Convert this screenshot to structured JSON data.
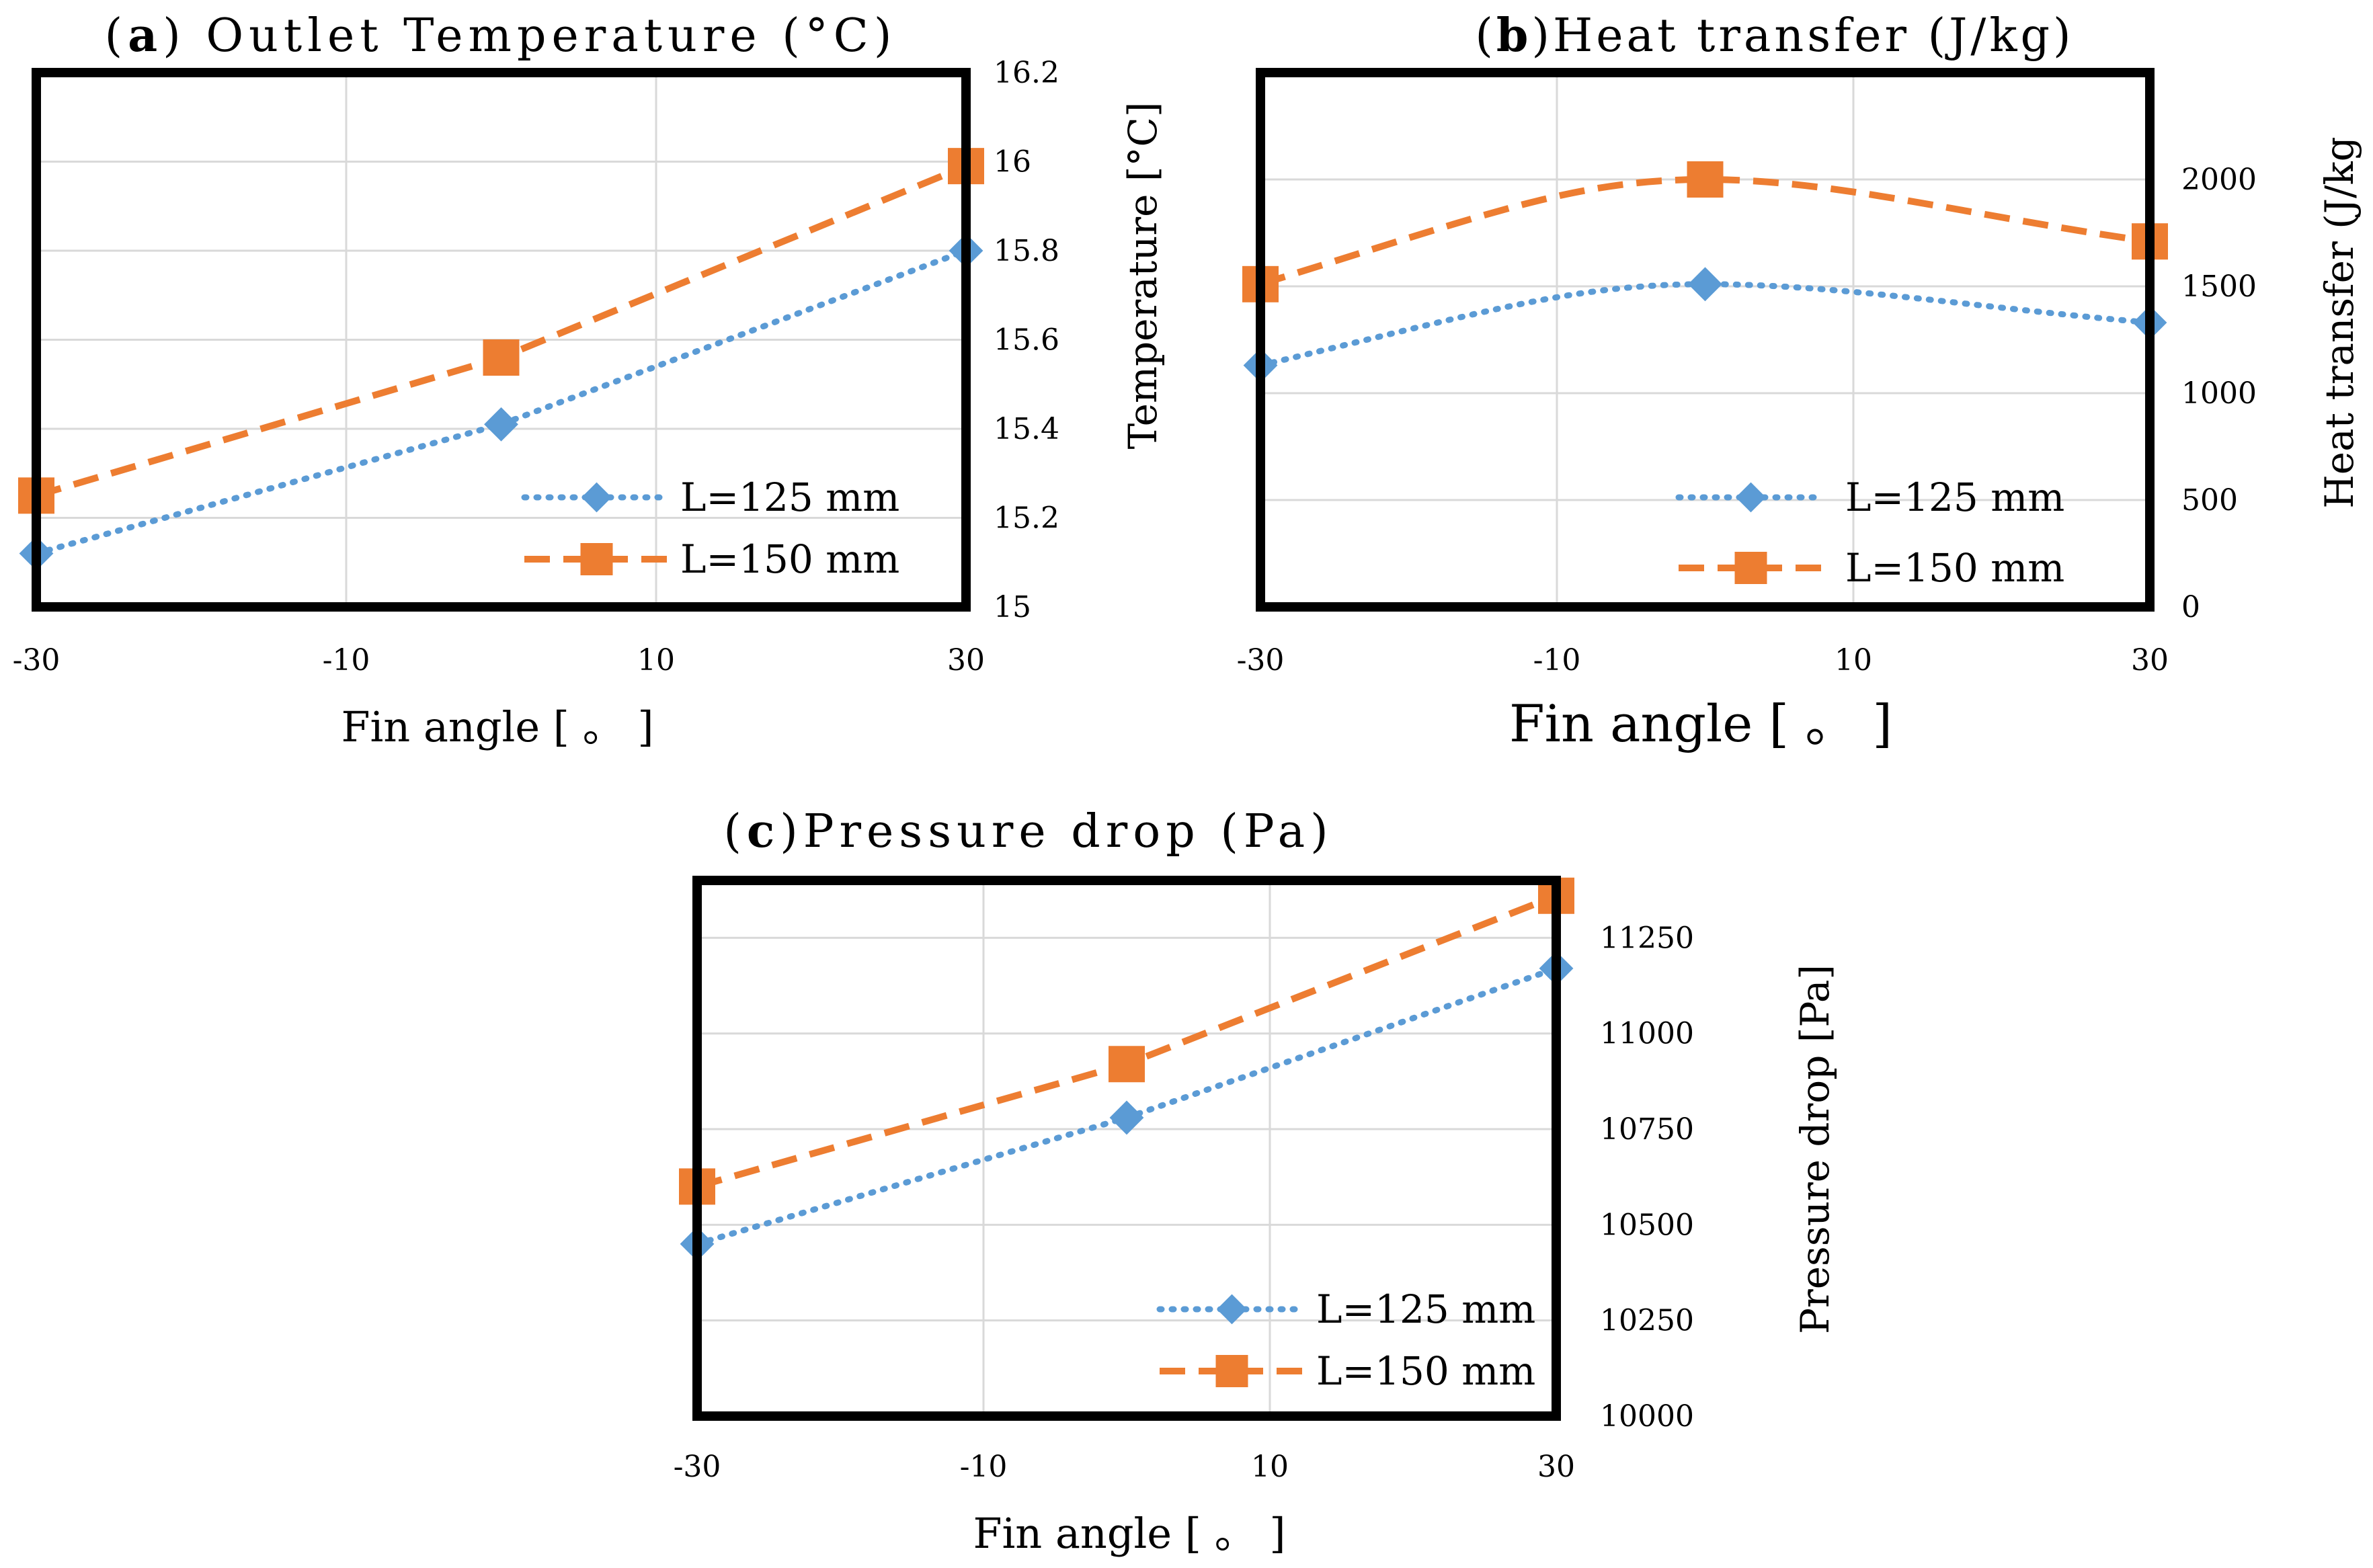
{
  "figure": {
    "colors": {
      "series_125": "#5B9BD5",
      "series_150": "#ED7D31",
      "frame": "#000000",
      "grid": "#D9D9D9"
    }
  },
  "chart_data": [
    {
      "id": "a",
      "type": "line",
      "title_letter": "a",
      "title_text": "Outlet Temperature (°C)",
      "title": "(a) Outlet Temperature (°C)",
      "xlabel": "Fin angle [ 。 ]",
      "ylabel_left": "",
      "ylabel_right": "",
      "x_ticks": [
        "-30",
        "-10",
        "10",
        "30"
      ],
      "y_ticks": [
        "15",
        "15.2",
        "15.4",
        "15.6",
        "15.8",
        "16",
        "16.2"
      ],
      "xlim": [
        -30,
        30
      ],
      "ylim": [
        15.0,
        16.2
      ],
      "grid": true,
      "legend_position": "bottom-right",
      "x": [
        -30,
        0,
        30
      ],
      "series": [
        {
          "name": "L=125 mm",
          "style": "dotted",
          "marker": "diamond",
          "values": [
            15.12,
            15.41,
            15.8
          ]
        },
        {
          "name": "L=150 mm",
          "style": "dashed",
          "marker": "square",
          "values": [
            15.25,
            15.56,
            15.99
          ]
        }
      ]
    },
    {
      "id": "b",
      "type": "line",
      "title_letter": "b",
      "title_text": "Heat transfer (J/kg)",
      "title": "(b)Heat transfer (J/kg)",
      "xlabel": "Fin angle [ 。 ]",
      "ylabel_left": "Temperature [°C]",
      "ylabel_right": "Heat transfer (J/kg",
      "x_ticks": [
        "-30",
        "-10",
        "10",
        "30"
      ],
      "y_ticks": [
        "0",
        "500",
        "1000",
        "1500",
        "2000"
      ],
      "xlim": [
        -30,
        30
      ],
      "ylim": [
        0,
        2500
      ],
      "grid": true,
      "legend_position": "bottom-right",
      "x": [
        -30,
        0,
        30
      ],
      "series": [
        {
          "name": "L=125 mm",
          "style": "dotted",
          "marker": "diamond",
          "values": [
            1130,
            1510,
            1330
          ]
        },
        {
          "name": "L=150 mm",
          "style": "dashed",
          "marker": "square",
          "values": [
            1510,
            2000,
            1710
          ]
        }
      ]
    },
    {
      "id": "c",
      "type": "line",
      "title_letter": "c",
      "title_text": "Pressure drop (Pa)",
      "title": "(c)Pressure drop (Pa)",
      "xlabel": "Fin angle [ 。 ]",
      "ylabel_left": "",
      "ylabel_right": "Pressure drop [Pa]",
      "x_ticks": [
        "-30",
        "-10",
        "10",
        "30"
      ],
      "y_ticks": [
        "10000",
        "10250",
        "10500",
        "10750",
        "11000",
        "11250"
      ],
      "xlim": [
        -30,
        30
      ],
      "ylim": [
        10000,
        11400
      ],
      "grid": true,
      "legend_position": "bottom-right",
      "x": [
        -30,
        0,
        30
      ],
      "series": [
        {
          "name": "L=125 mm",
          "style": "dotted",
          "marker": "diamond",
          "values": [
            10450,
            10780,
            11170
          ]
        },
        {
          "name": "L=150 mm",
          "style": "dashed",
          "marker": "square",
          "values": [
            10600,
            10920,
            11360
          ]
        }
      ]
    }
  ]
}
